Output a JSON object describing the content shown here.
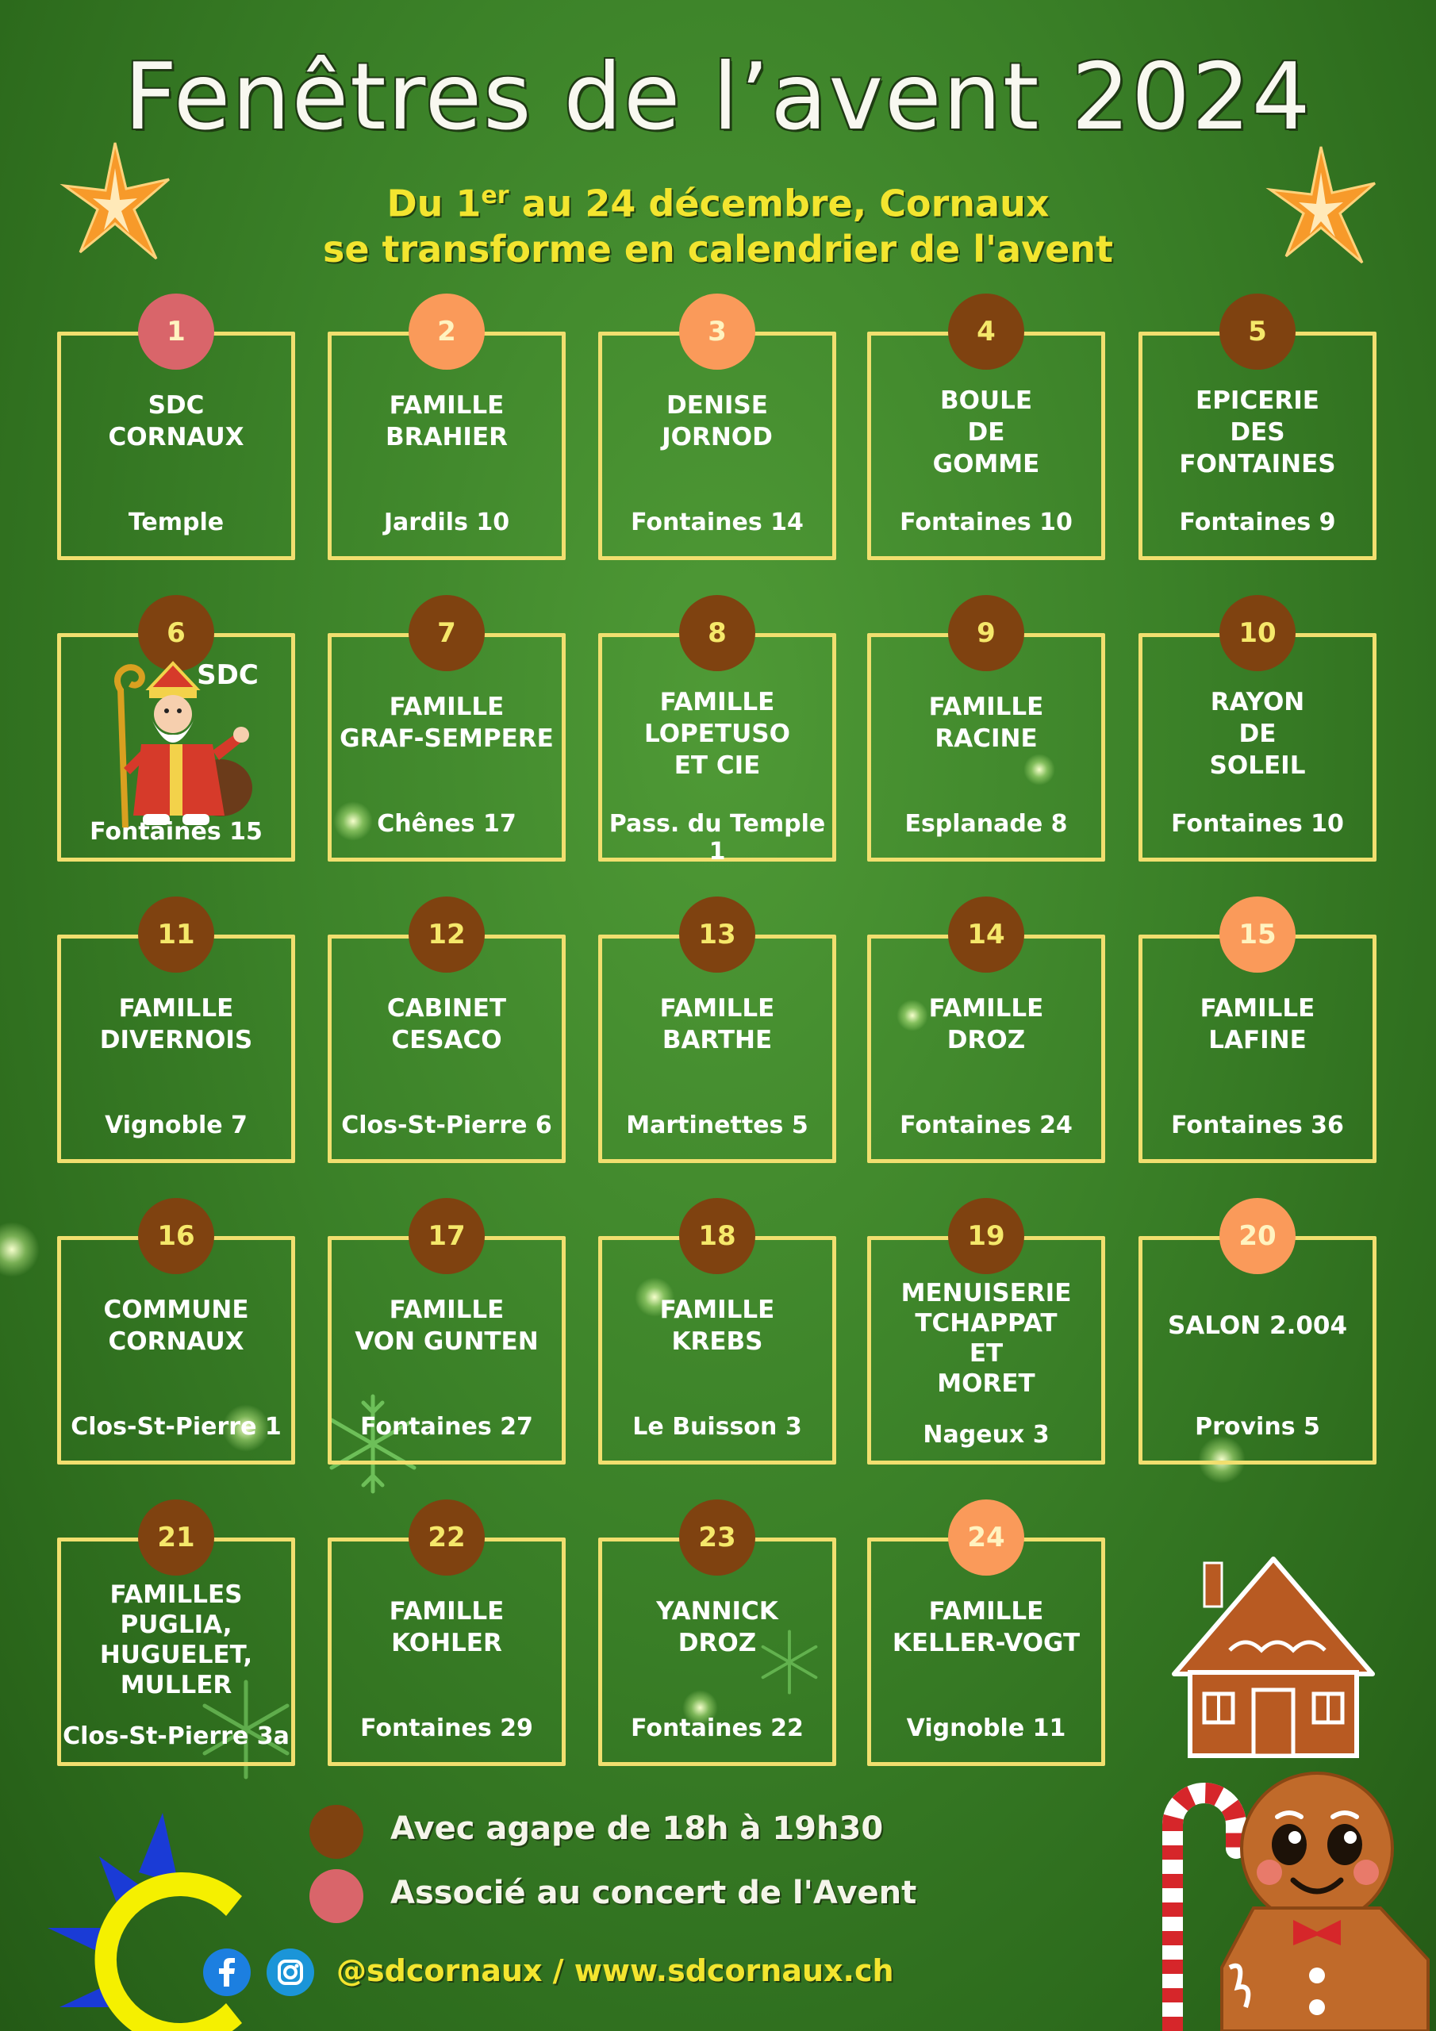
{
  "poster": {
    "title": "Fenêtres de l’avent 2024",
    "subtitle_part1": "Du 1",
    "subtitle_sup": "er",
    "subtitle_part2": " au 24 décembre, Cornaux",
    "subtitle_line2": "se transforme en calendrier de l'avent"
  },
  "colors": {
    "agape": "#7f4210",
    "concert": "#d9656a",
    "other": "#fa9a5a",
    "frame": "#f1df6f",
    "accent_text": "#f3e52f"
  },
  "calendar": [
    {
      "day": "1",
      "name": "SDC\nCORNAUX",
      "address": "Temple",
      "badge": "red"
    },
    {
      "day": "2",
      "name": "FAMILLE\nBRAHIER",
      "address": "Jardils 10",
      "badge": "orange"
    },
    {
      "day": "3",
      "name": "DENISE\nJORNOD",
      "address": "Fontaines 14",
      "badge": "orange"
    },
    {
      "day": "4",
      "name": "BOULE\nDE\nGOMME",
      "address": "Fontaines 10",
      "badge": "brown"
    },
    {
      "day": "5",
      "name": "EPICERIE\nDES\nFONTAINES",
      "address": "Fontaines 9",
      "badge": "brown"
    },
    {
      "day": "6",
      "name": "SDC",
      "address": "Fontaines 15",
      "badge": "brown"
    },
    {
      "day": "7",
      "name": "FAMILLE\nGRAF-SEMPERE",
      "address": "Chênes 17",
      "badge": "brown"
    },
    {
      "day": "8",
      "name": "FAMILLE\nLOPETUSO\nET CIE",
      "address": "Pass. du Temple 1",
      "badge": "brown"
    },
    {
      "day": "9",
      "name": "FAMILLE\nRACINE",
      "address": "Esplanade 8",
      "badge": "brown"
    },
    {
      "day": "10",
      "name": "RAYON\nDE\nSOLEIL",
      "address": "Fontaines 10",
      "badge": "brown"
    },
    {
      "day": "11",
      "name": "FAMILLE\nDIVERNOIS",
      "address": "Vignoble 7",
      "badge": "brown"
    },
    {
      "day": "12",
      "name": "CABINET\nCESACO",
      "address": "Clos-St-Pierre 6",
      "badge": "brown"
    },
    {
      "day": "13",
      "name": "FAMILLE\nBARTHE",
      "address": "Martinettes 5",
      "badge": "brown"
    },
    {
      "day": "14",
      "name": "FAMILLE\nDROZ",
      "address": "Fontaines 24",
      "badge": "brown"
    },
    {
      "day": "15",
      "name": "FAMILLE\nLAFINE",
      "address": "Fontaines 36",
      "badge": "orange"
    },
    {
      "day": "16",
      "name": "COMMUNE\nCORNAUX",
      "address": "Clos-St-Pierre 1",
      "badge": "brown"
    },
    {
      "day": "17",
      "name": "FAMILLE\nVON GUNTEN",
      "address": "Fontaines 27",
      "badge": "brown"
    },
    {
      "day": "18",
      "name": "FAMILLE\nKREBS",
      "address": "Le Buisson 3",
      "badge": "brown"
    },
    {
      "day": "19",
      "name": "MENUISERIE\nTCHAPPAT\nET\nMORET",
      "address": "Nageux 3",
      "badge": "brown"
    },
    {
      "day": "20",
      "name": "SALON 2.004",
      "address": "Provins 5",
      "badge": "orange"
    },
    {
      "day": "21",
      "name": "FAMILLES\nPUGLIA,\nHUGUELET,\nMULLER",
      "address": "Clos-St-Pierre 3a",
      "badge": "brown"
    },
    {
      "day": "22",
      "name": "FAMILLE\nKOHLER",
      "address": "Fontaines 29",
      "badge": "brown"
    },
    {
      "day": "23",
      "name": "YANNICK\nDROZ",
      "address": "Fontaines 22",
      "badge": "brown"
    },
    {
      "day": "24",
      "name": "FAMILLE\nKELLER-VOGT",
      "address": "Vignoble 11",
      "badge": "orange"
    }
  ],
  "legend": {
    "agape": "Avec agape de 18h à 19h30",
    "concert": "Associé au concert de l'Avent"
  },
  "footer": {
    "social": "@sdcornaux / www.sdcornaux.ch",
    "icons": [
      "facebook-icon",
      "instagram-icon"
    ]
  },
  "decorations": [
    "star-icon",
    "star-icon",
    "saint-nicolas-illustration",
    "gingerbread-house-icon",
    "gingerbread-man-illustration",
    "candy-cane-icon",
    "sdc-logo"
  ]
}
